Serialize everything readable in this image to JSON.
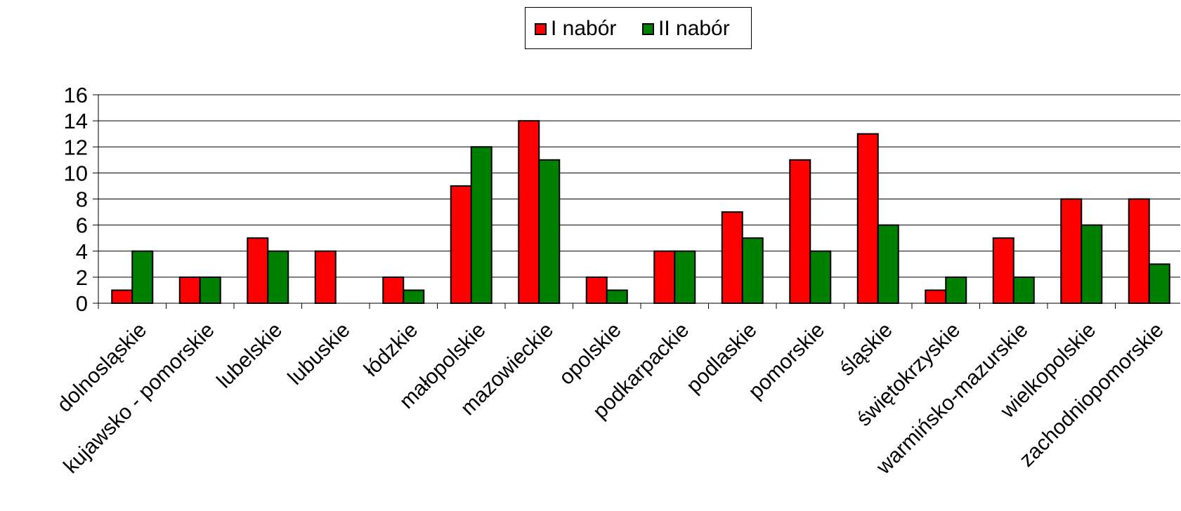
{
  "chart_data": {
    "type": "bar",
    "categories": [
      "dolnosląskie",
      "kujawsko - pomorskie",
      "lubelskie",
      "lubuskie",
      "łódzkie",
      "małopolskie",
      "mazowieckie",
      "opolskie",
      "podkarpackie",
      "podlaskie",
      "pomorskie",
      "śląskie",
      "świętokrzyskie",
      "warmińsko-mazurskie",
      "wielkopolskie",
      "zachodniopomorskie"
    ],
    "series": [
      {
        "name": "I nabór",
        "color": "#ff0000",
        "values": [
          1,
          2,
          5,
          4,
          2,
          9,
          14,
          2,
          4,
          7,
          11,
          13,
          1,
          5,
          8,
          8
        ]
      },
      {
        "name": "II nabór",
        "color": "#008000",
        "values": [
          4,
          2,
          4,
          0,
          1,
          12,
          11,
          1,
          4,
          5,
          4,
          6,
          2,
          2,
          6,
          3
        ]
      }
    ],
    "yticks": [
      "0",
      "2",
      "4",
      "6",
      "8",
      "10",
      "12",
      "14",
      "16"
    ],
    "ylim": [
      0,
      16
    ],
    "grid": true,
    "legend_position": "top-center"
  }
}
